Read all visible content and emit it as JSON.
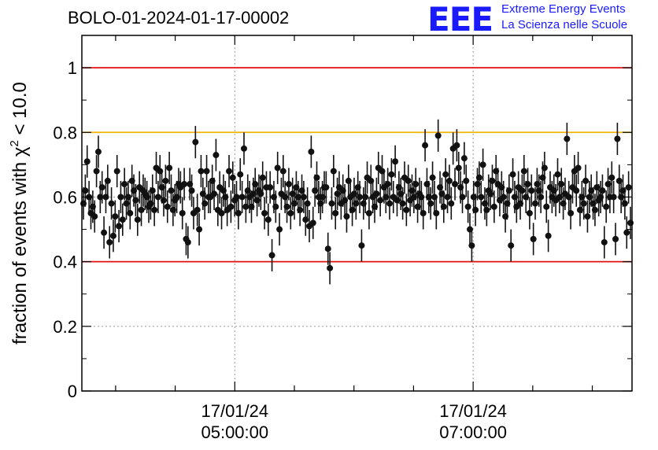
{
  "title": "BOLO-01-2024-01-17-00002",
  "logo": {
    "mark": "EEE",
    "line1": "Extreme Energy Events",
    "line2": "La Scienza nelle Scuole",
    "color": "#1a1aff"
  },
  "chart_data": {
    "type": "scatter",
    "title": "BOLO-01-2024-01-17-00002",
    "ylabel": "fraction of events with χ² < 10.0",
    "xlabel": "",
    "ylim": [
      0,
      1.1
    ],
    "xlim": [
      "17/01/24 03:43:00",
      "17/01/24 08:20:00"
    ],
    "x_ticks": [
      {
        "date": "17/01/24",
        "time": "05:00:00"
      },
      {
        "date": "17/01/24",
        "time": "07:00:00"
      }
    ],
    "y_ticks": [
      "0",
      "0.2",
      "0.4",
      "0.6",
      "0.8",
      "1"
    ],
    "reference_lines": [
      {
        "y": 1.0,
        "color": "#e01010"
      },
      {
        "y": 0.8,
        "color": "#f0b400"
      },
      {
        "y": 0.4,
        "color": "#e01010"
      }
    ],
    "grid": "dotted at major ticks",
    "marker_color": "#111111",
    "series": [
      {
        "y": [
          0.58,
          0.62,
          0.71,
          0.6,
          0.55,
          0.57,
          0.54,
          0.68,
          0.74,
          0.6,
          0.63,
          0.49,
          0.6,
          0.65,
          0.46,
          0.58,
          0.48,
          0.54,
          0.68,
          0.51,
          0.6,
          0.53,
          0.64,
          0.58,
          0.6,
          0.55,
          0.65,
          0.62,
          0.59,
          0.53,
          0.63,
          0.56,
          0.62,
          0.61,
          0.6,
          0.57,
          0.58,
          0.62,
          0.56,
          0.69,
          0.6,
          0.68,
          0.63,
          0.59,
          0.65,
          0.57,
          0.69,
          0.62,
          0.56,
          0.59,
          0.6,
          0.64,
          0.63,
          0.55,
          0.64,
          0.47,
          0.46,
          0.64,
          0.62,
          0.55,
          0.77,
          0.56,
          0.5,
          0.68,
          0.61,
          0.58,
          0.68,
          0.6,
          0.6,
          0.65,
          0.61,
          0.73,
          0.56,
          0.63,
          0.55,
          0.62,
          0.6,
          0.56,
          0.68,
          0.57,
          0.66,
          0.59,
          0.6,
          0.55,
          0.67,
          0.6,
          0.75,
          0.57,
          0.62,
          0.6,
          0.57,
          0.61,
          0.64,
          0.59,
          0.62,
          0.61,
          0.66,
          0.55,
          0.63,
          0.53,
          0.63,
          0.42,
          0.6,
          0.57,
          0.69,
          0.5,
          0.61,
          0.68,
          0.6,
          0.57,
          0.64,
          0.55,
          0.61,
          0.58,
          0.63,
          0.6,
          0.56,
          0.62,
          0.6,
          0.53,
          0.58,
          0.51,
          0.74,
          0.52,
          0.62,
          0.66,
          0.6,
          0.58,
          0.6,
          0.63,
          0.63,
          0.44,
          0.38,
          0.58,
          0.68,
          0.55,
          0.61,
          0.63,
          0.58,
          0.62,
          0.59,
          0.54,
          0.65,
          0.6,
          0.56,
          0.61,
          0.58,
          0.63,
          0.6,
          0.45,
          0.58,
          0.6,
          0.66,
          0.55,
          0.65,
          0.6,
          0.57,
          0.61,
          0.69,
          0.59,
          0.68,
          0.63,
          0.6,
          0.64,
          0.58,
          0.67,
          0.6,
          0.71,
          0.59,
          0.63,
          0.61,
          0.58,
          0.66,
          0.56,
          0.65,
          0.59,
          0.62,
          0.6,
          0.64,
          0.57,
          0.61,
          0.6,
          0.55,
          0.76,
          0.64,
          0.6,
          0.58,
          0.66,
          0.6,
          0.55,
          0.79,
          0.63,
          0.61,
          0.57,
          0.67,
          0.6,
          0.65,
          0.58,
          0.75,
          0.64,
          0.76,
          0.69,
          0.63,
          0.6,
          0.72,
          0.65,
          0.57,
          0.5,
          0.45,
          0.6,
          0.56,
          0.64,
          0.66,
          0.6,
          0.7,
          0.58,
          0.56,
          0.62,
          0.61,
          0.65,
          0.57,
          0.68,
          0.64,
          0.59,
          0.63,
          0.6,
          0.54,
          0.58,
          0.62,
          0.45,
          0.67,
          0.6,
          0.57,
          0.63,
          0.58,
          0.62,
          0.68,
          0.6,
          0.64,
          0.55,
          0.62,
          0.47,
          0.58,
          0.64,
          0.62,
          0.6,
          0.66,
          0.69,
          0.57,
          0.48,
          0.63,
          0.6,
          0.62,
          0.59,
          0.67,
          0.6,
          0.64,
          0.58,
          0.61,
          0.78,
          0.6,
          0.55,
          0.63,
          0.68,
          0.62,
          0.69,
          0.56,
          0.6,
          0.58,
          0.65,
          0.54,
          0.6,
          0.62,
          0.58,
          0.56,
          0.63,
          0.59,
          0.6,
          0.62,
          0.46,
          0.57,
          0.64,
          0.6,
          0.66,
          0.6,
          0.47,
          0.78,
          0.65,
          0.6,
          0.62,
          0.58,
          0.49,
          0.63,
          0.52
        ],
        "error": 0.05
      }
    ]
  }
}
